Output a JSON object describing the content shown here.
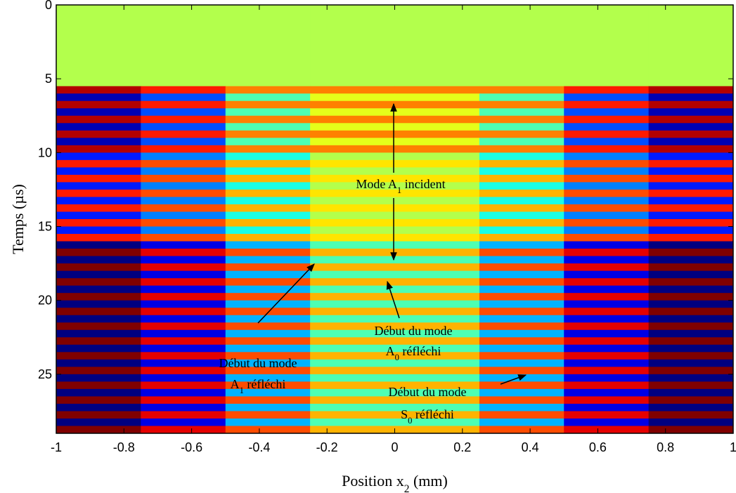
{
  "chart_data": {
    "type": "heatmap",
    "y_label": [
      "Temps (µs)"
    ],
    "x_label": [
      {
        "text": "Position x"
      },
      {
        "text": "2",
        "sub": true
      },
      {
        "text": " (mm)"
      }
    ],
    "x_edges": [
      -1,
      -0.75,
      -0.5,
      -0.25,
      0,
      0.25,
      0.5,
      0.75,
      1
    ],
    "y_edges": [
      0,
      5.5,
      6,
      6.5,
      7,
      7.5,
      8,
      8.5,
      9,
      9.5,
      10,
      10.5,
      11,
      11.5,
      12,
      12.5,
      13,
      13.5,
      14,
      14.5,
      15,
      15.5,
      16,
      16.5,
      17,
      17.5,
      18,
      18.5,
      19,
      19.5,
      20,
      20.5,
      21,
      21.5,
      22,
      22.5,
      23,
      23.5,
      24,
      24.5,
      25,
      25.5,
      26,
      26.5,
      27,
      27.5,
      28,
      28.5,
      29
    ],
    "clim": [
      -1,
      1
    ],
    "colormap": "jet",
    "xlim": [
      -1,
      1
    ],
    "ylim": [
      0,
      29
    ],
    "y_reversed": true,
    "xticks": [
      -1,
      -0.8,
      -0.6,
      -0.4,
      -0.2,
      0,
      0.2,
      0.4,
      0.6,
      0.8,
      1
    ],
    "yticks": [
      0,
      5,
      10,
      15,
      20,
      25
    ],
    "z": [
      [
        0.1,
        0.1,
        0.1,
        0.1,
        0.1,
        0.1,
        0.1,
        0.1
      ],
      [
        0.9,
        0.7,
        0.5,
        0.5,
        0.5,
        0.5,
        0.7,
        0.9
      ],
      [
        -0.9,
        -0.6,
        -0.1,
        0.2,
        0.2,
        -0.1,
        -0.6,
        -0.9
      ],
      [
        0.9,
        0.7,
        0.5,
        0.5,
        0.5,
        0.5,
        0.7,
        0.9
      ],
      [
        -0.9,
        -0.6,
        -0.1,
        0.2,
        0.2,
        -0.1,
        -0.6,
        -0.9
      ],
      [
        0.9,
        0.7,
        0.5,
        0.5,
        0.5,
        0.5,
        0.7,
        0.9
      ],
      [
        -0.9,
        -0.6,
        -0.1,
        0.2,
        0.2,
        -0.1,
        -0.6,
        -0.9
      ],
      [
        0.9,
        0.7,
        0.5,
        0.5,
        0.5,
        0.5,
        0.7,
        0.9
      ],
      [
        -0.9,
        -0.6,
        -0.1,
        0.2,
        0.2,
        -0.1,
        -0.6,
        -0.9
      ],
      [
        0.9,
        0.7,
        0.5,
        0.5,
        0.5,
        0.5,
        0.7,
        0.9
      ],
      [
        -0.7,
        -0.5,
        -0.2,
        0.1,
        0.1,
        -0.2,
        -0.5,
        -0.7
      ],
      [
        0.7,
        0.6,
        0.4,
        0.3,
        0.3,
        0.4,
        0.6,
        0.7
      ],
      [
        -0.7,
        -0.5,
        -0.2,
        0.1,
        0.1,
        -0.2,
        -0.5,
        -0.7
      ],
      [
        0.7,
        0.6,
        0.4,
        0.3,
        0.3,
        0.4,
        0.6,
        0.7
      ],
      [
        -0.7,
        -0.5,
        -0.2,
        0.1,
        0.1,
        -0.2,
        -0.5,
        -0.7
      ],
      [
        0.7,
        0.6,
        0.4,
        0.3,
        0.3,
        0.4,
        0.6,
        0.7
      ],
      [
        -0.7,
        -0.5,
        -0.2,
        0.1,
        0.1,
        -0.2,
        -0.5,
        -0.7
      ],
      [
        0.7,
        0.6,
        0.4,
        0.3,
        0.3,
        0.4,
        0.6,
        0.7
      ],
      [
        -0.7,
        -0.5,
        -0.2,
        0.1,
        0.1,
        -0.2,
        -0.5,
        -0.7
      ],
      [
        0.7,
        0.6,
        0.4,
        0.3,
        0.3,
        0.4,
        0.6,
        0.7
      ],
      [
        -0.7,
        -0.5,
        -0.2,
        0.1,
        0.1,
        -0.2,
        -0.5,
        -0.7
      ],
      [
        0.7,
        0.6,
        0.4,
        0.3,
        0.3,
        0.4,
        0.6,
        0.7
      ],
      [
        -1,
        -0.8,
        -0.4,
        -0.1,
        -0.1,
        -0.4,
        -0.8,
        -1
      ],
      [
        1,
        0.8,
        0.6,
        0.4,
        0.4,
        0.6,
        0.8,
        1
      ],
      [
        -1,
        -0.8,
        -0.4,
        -0.1,
        -0.1,
        -0.4,
        -0.8,
        -1
      ],
      [
        1,
        0.8,
        0.6,
        0.4,
        0.4,
        0.6,
        0.8,
        1
      ],
      [
        -1,
        -0.8,
        -0.4,
        -0.1,
        -0.1,
        -0.4,
        -0.8,
        -1
      ],
      [
        1,
        0.8,
        0.6,
        0.4,
        0.4,
        0.6,
        0.8,
        1
      ],
      [
        -1,
        -0.8,
        -0.4,
        -0.1,
        -0.1,
        -0.4,
        -0.8,
        -1
      ],
      [
        1,
        0.8,
        0.6,
        0.4,
        0.4,
        0.6,
        0.8,
        1
      ],
      [
        -1,
        -0.8,
        -0.4,
        -0.1,
        -0.1,
        -0.4,
        -0.8,
        -1
      ],
      [
        1,
        0.8,
        0.6,
        0.4,
        0.4,
        0.6,
        0.8,
        1
      ],
      [
        -1,
        -0.8,
        -0.4,
        -0.1,
        -0.1,
        -0.4,
        -0.8,
        -1
      ],
      [
        1,
        0.8,
        0.6,
        0.4,
        0.4,
        0.6,
        0.8,
        1
      ],
      [
        -1,
        -0.8,
        -0.4,
        -0.1,
        -0.1,
        -0.4,
        -0.8,
        -1
      ],
      [
        1,
        0.8,
        0.6,
        0.4,
        0.4,
        0.6,
        0.8,
        1
      ],
      [
        -1,
        -0.8,
        -0.4,
        -0.1,
        -0.1,
        -0.4,
        -0.8,
        -1
      ],
      [
        1,
        0.8,
        0.6,
        0.4,
        0.4,
        0.6,
        0.8,
        1
      ],
      [
        -1,
        -0.8,
        -0.4,
        -0.1,
        -0.1,
        -0.4,
        -0.8,
        -1
      ],
      [
        1,
        0.8,
        0.6,
        0.4,
        0.4,
        0.6,
        0.8,
        1
      ],
      [
        -1,
        -0.8,
        -0.4,
        -0.1,
        -0.1,
        -0.4,
        -0.8,
        -1
      ],
      [
        1,
        0.8,
        0.6,
        0.4,
        0.4,
        0.6,
        0.8,
        1
      ],
      [
        -1,
        -0.8,
        -0.4,
        -0.1,
        -0.1,
        -0.4,
        -0.8,
        -1
      ],
      [
        1,
        0.8,
        0.6,
        0.4,
        0.4,
        0.6,
        0.8,
        1
      ],
      [
        -1,
        -0.8,
        -0.4,
        -0.1,
        -0.1,
        -0.4,
        -0.8,
        -1
      ],
      [
        1,
        0.8,
        0.6,
        0.4,
        0.4,
        0.6,
        0.8,
        1
      ],
      [
        -1,
        -0.8,
        -0.4,
        -0.1,
        -0.1,
        -0.4,
        -0.8,
        -1
      ],
      [
        1,
        0.8,
        0.6,
        0.4,
        0.4,
        0.6,
        0.8,
        1
      ]
    ],
    "annotations": [
      {
        "lines": [
          [
            {
              "text": "Mode A"
            },
            {
              "text": "1",
              "sub": true
            },
            {
              "text": " incident"
            }
          ]
        ]
      },
      {
        "lines": [
          [
            {
              "text": "Début du mode"
            }
          ],
          [
            {
              "text": "A"
            },
            {
              "text": "1",
              "sub": true
            },
            {
              "text": " réfléchi"
            }
          ]
        ]
      },
      {
        "lines": [
          [
            {
              "text": "Début du mode"
            }
          ],
          [
            {
              "text": "A"
            },
            {
              "text": "0",
              "sub": true
            },
            {
              "text": " réfléchi"
            }
          ]
        ]
      },
      {
        "lines": [
          [
            {
              "text": "Début du mode"
            }
          ],
          [
            {
              "text": "S"
            },
            {
              "text": "0",
              "sub": true
            },
            {
              "text": " réfléchi"
            }
          ]
        ]
      }
    ]
  }
}
